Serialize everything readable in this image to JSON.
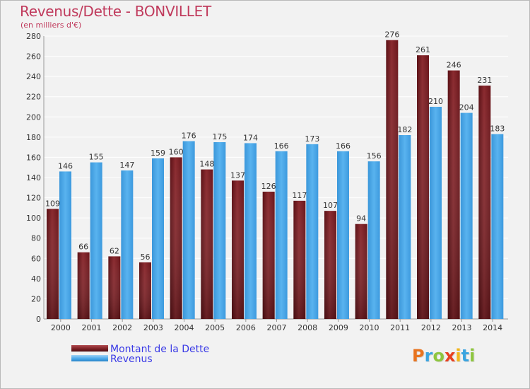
{
  "title": "Revenus/Dette - BONVILLET",
  "subtitle": "(en milliers d'€)",
  "logo_text": "Proxiti",
  "logo_letters": [
    {
      "ch": "P",
      "color": "#e8741f"
    },
    {
      "ch": "r",
      "color": "#3aa4e0"
    },
    {
      "ch": "o",
      "color": "#8ec63f"
    },
    {
      "ch": "x",
      "color": "#e8401f"
    },
    {
      "ch": "i",
      "color": "#f2b61c"
    },
    {
      "ch": "t",
      "color": "#3aa4e0"
    },
    {
      "ch": "i",
      "color": "#8ec63f"
    }
  ],
  "legend": {
    "debt_label": "Montant de la Dette",
    "revenue_label": "Revenus"
  },
  "colors": {
    "debt": "#7a1f24",
    "revenue": "#4aa8ea",
    "title": "#c03a5c",
    "legend_text": "#3a3ae6",
    "grid": "#ffffff",
    "axis_text": "#333333"
  },
  "chart_data": {
    "type": "bar",
    "title": "Revenus/Dette - BONVILLET",
    "subtitle": "(en milliers d'€)",
    "categories": [
      "2000",
      "2001",
      "2002",
      "2003",
      "2004",
      "2005",
      "2006",
      "2007",
      "2008",
      "2009",
      "2010",
      "2011",
      "2012",
      "2013",
      "2014"
    ],
    "series": [
      {
        "name": "Montant de la Dette",
        "values": [
          109,
          66,
          62,
          56,
          160,
          148,
          137,
          126,
          117,
          107,
          94,
          276,
          261,
          246,
          231
        ]
      },
      {
        "name": "Revenus",
        "values": [
          146,
          155,
          147,
          159,
          176,
          175,
          174,
          166,
          173,
          166,
          156,
          182,
          210,
          204,
          183
        ]
      }
    ],
    "ylim": [
      0,
      280
    ],
    "yticks": [
      0,
      20,
      40,
      60,
      80,
      100,
      120,
      140,
      160,
      180,
      200,
      220,
      240,
      260,
      280
    ],
    "grid": true,
    "legend_position": "bottom-left"
  }
}
